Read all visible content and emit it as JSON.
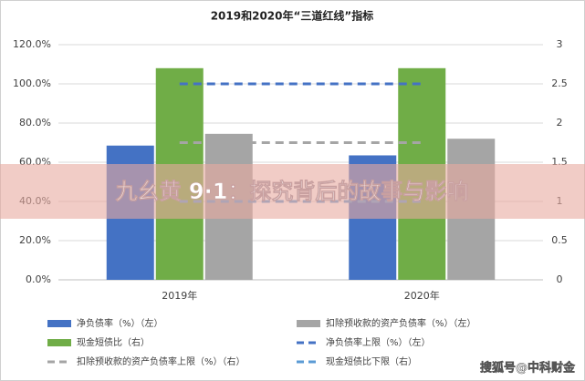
{
  "chart_data": {
    "type": "bar",
    "title": "2019和2020年“三道红线”指标",
    "categories": [
      "2019年",
      "2020年"
    ],
    "ylim": [
      0,
      120
    ],
    "yticks": [
      {
        "value": 0,
        "label": "0.0%"
      },
      {
        "value": 20,
        "label": "20.0%"
      },
      {
        "value": 40,
        "label": "40.0%"
      },
      {
        "value": 60,
        "label": "60.0%"
      },
      {
        "value": 80,
        "label": "80.0%"
      },
      {
        "value": 100,
        "label": "100.0%"
      },
      {
        "value": 120,
        "label": "120.0%"
      }
    ],
    "y2lim": [
      0,
      3
    ],
    "y2ticks": [
      0,
      0.5,
      1,
      1.5,
      2,
      2.5,
      3
    ],
    "grid": true,
    "series": [
      {
        "name": "净负债率（%）（左）",
        "color": "#4472c4",
        "kind": "bar",
        "values": [
          68.5,
          63.5
        ]
      },
      {
        "name": "现金短债比（右）",
        "color": "#70ad47",
        "kind": "bar",
        "axis": "y2",
        "values": [
          2.7,
          2.7
        ]
      },
      {
        "name": "扣除预收款的资产负债率上限（%）（右）",
        "color": "#a5a5a5",
        "kind": "line",
        "axis": "y2",
        "values": [
          1.75,
          1.75
        ]
      },
      {
        "name": "扣除预收款的资产负债率（%）（左）",
        "color": "#a5a5a5",
        "kind": "bar",
        "values": [
          74.5,
          72
        ]
      },
      {
        "name": "净负债率上限（%）（左）",
        "color": "#4472c4",
        "kind": "line",
        "values": [
          100,
          100
        ]
      },
      {
        "name": "现金短债比下限（右）",
        "color": "#5b9bd5",
        "kind": "line",
        "axis": "y2",
        "values": [
          1,
          1
        ]
      }
    ]
  },
  "overlay_text": "九幺黄 9·1：探究背后的故事与影响",
  "watermark": "搜狐号@中科财金"
}
